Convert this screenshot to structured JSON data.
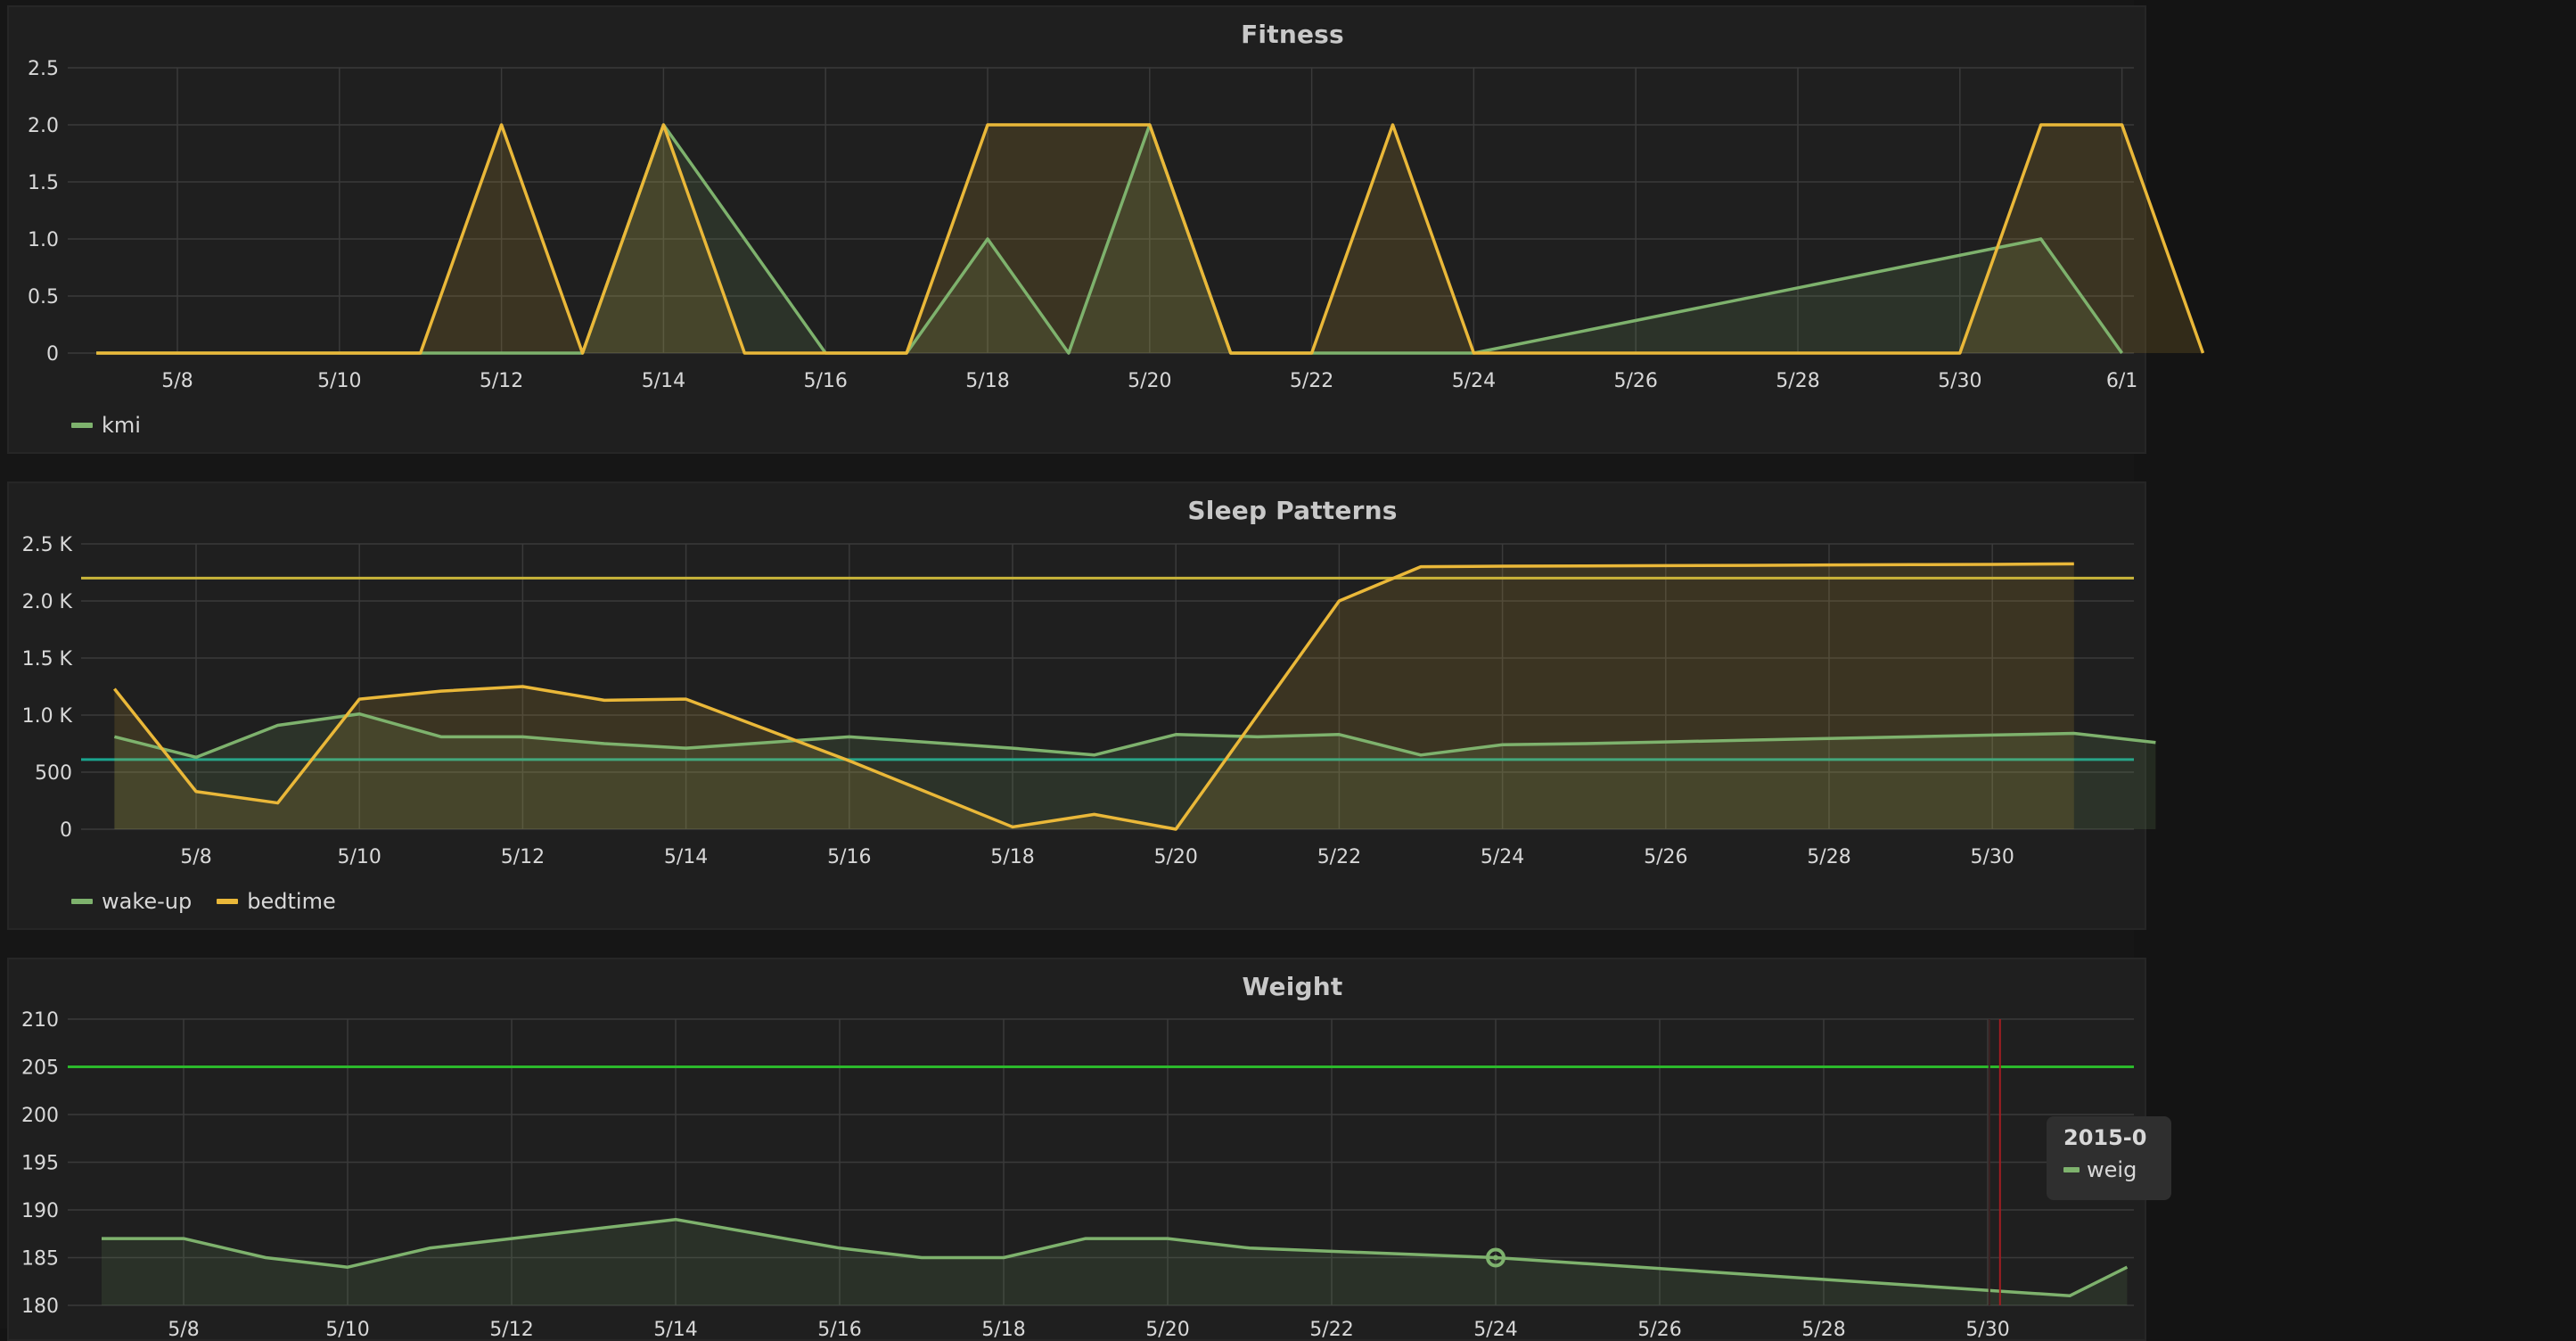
{
  "palette": {
    "green": "#7eb26d",
    "yellow": "#eab839",
    "threshold_yellow": "#c9b53a",
    "threshold_teal": "#1aa58f",
    "threshold_green": "#2bb92b",
    "marker_red": "#a31d22",
    "grid": "#3a3a3a",
    "tick_text": "#d8d8d8"
  },
  "panels": {
    "fitness": {
      "title": "Fitness",
      "legend": [
        {
          "name": "kmi",
          "color": "#7eb26d"
        }
      ]
    },
    "sleep": {
      "title": "Sleep Patterns",
      "legend": [
        {
          "name": "wake-up",
          "color": "#7eb26d"
        },
        {
          "name": "bedtime",
          "color": "#eab839"
        }
      ]
    },
    "weight": {
      "title": "Weight",
      "tooltip": {
        "title": "2015-0",
        "series_name": "weig"
      }
    }
  },
  "chart_data": [
    {
      "id": "fitness",
      "type": "area",
      "title": "Fitness",
      "x_unit": "day of May 2015",
      "xlim": [
        7,
        32.45
      ],
      "x_ticks": [
        8,
        10,
        12,
        14,
        16,
        18,
        20,
        22,
        24,
        26,
        28,
        30,
        32
      ],
      "x_tick_labels": [
        "5/8",
        "5/10",
        "5/12",
        "5/14",
        "5/16",
        "5/18",
        "5/20",
        "5/22",
        "5/24",
        "5/26",
        "5/28",
        "5/30",
        "6/1"
      ],
      "ylim": [
        0,
        2.5
      ],
      "y_ticks": [
        0,
        0.5,
        1.0,
        1.5,
        2.0,
        2.5
      ],
      "y_tick_labels": [
        "0",
        "0.5",
        "1.0",
        "1.5",
        "2.0",
        "2.5"
      ],
      "grid": true,
      "legend_position": "bottom-left",
      "series": [
        {
          "name": "kmi",
          "color": "#7eb26d",
          "x": [
            7,
            8,
            9,
            10,
            11,
            12,
            13,
            14,
            15,
            16,
            17,
            18,
            19,
            20,
            21,
            22,
            23,
            24,
            31,
            32
          ],
          "values": [
            0,
            0,
            0,
            0,
            0,
            0,
            0,
            2,
            1,
            0,
            0,
            1,
            0,
            2,
            0,
            0,
            0,
            0,
            1,
            0
          ]
        },
        {
          "color": "#eab839",
          "x": [
            7,
            8,
            9,
            10,
            11,
            12,
            13,
            14,
            15,
            16,
            17,
            18,
            19,
            20,
            21,
            22,
            23,
            24,
            25,
            26,
            27,
            28,
            29,
            30,
            31,
            32,
            33
          ],
          "values": [
            0,
            0,
            0,
            0,
            0,
            2,
            0,
            2,
            0,
            0,
            0,
            2,
            2,
            2,
            0,
            0,
            2,
            0,
            0,
            0,
            0,
            0,
            0,
            0,
            2,
            2,
            0
          ]
        }
      ]
    },
    {
      "id": "sleep",
      "type": "area",
      "title": "Sleep Patterns",
      "x_unit": "day of May 2015",
      "xlim": [
        6.5,
        32
      ],
      "x_ticks": [
        8,
        10,
        12,
        14,
        16,
        18,
        20,
        22,
        24,
        26,
        28,
        30
      ],
      "x_tick_labels": [
        "5/8",
        "5/10",
        "5/12",
        "5/14",
        "5/16",
        "5/18",
        "5/20",
        "5/22",
        "5/24",
        "5/26",
        "5/28",
        "5/30"
      ],
      "ylim": [
        0,
        2500
      ],
      "y_ticks": [
        0,
        500,
        1000,
        1500,
        2000,
        2500
      ],
      "y_tick_labels": [
        "0",
        "500",
        "1.0 K",
        "1.5 K",
        "2.0 K",
        "2.5 K"
      ],
      "grid": true,
      "legend_position": "bottom-left",
      "thresholds": [
        {
          "value": 2200,
          "color": "#c9b53a"
        },
        {
          "value": 610,
          "color": "#1aa58f"
        }
      ],
      "series": [
        {
          "name": "wake-up",
          "color": "#7eb26d",
          "x": [
            7,
            8,
            9,
            10,
            11,
            12,
            13,
            14,
            15,
            16,
            17,
            18,
            19,
            20,
            21,
            22,
            23,
            24,
            25,
            26,
            27,
            28,
            29,
            30,
            31,
            32
          ],
          "values": [
            810,
            630,
            910,
            1010,
            810,
            810,
            750,
            710,
            760,
            810,
            760,
            710,
            650,
            830,
            810,
            830,
            650,
            740,
            750,
            765,
            780,
            795,
            810,
            825,
            840,
            760
          ]
        },
        {
          "name": "bedtime",
          "color": "#eab839",
          "x": [
            7,
            8,
            9,
            10,
            11,
            12,
            13,
            14,
            16,
            18,
            19,
            20,
            22,
            23,
            24,
            25,
            26,
            27,
            28,
            29,
            30,
            31
          ],
          "values": [
            1230,
            330,
            230,
            1140,
            1210,
            1250,
            1130,
            1140,
            600,
            20,
            130,
            0,
            2000,
            2300,
            2305,
            2307,
            2310,
            2312,
            2315,
            2318,
            2320,
            2325
          ]
        }
      ]
    },
    {
      "id": "weight",
      "type": "area",
      "title": "Weight",
      "x_unit": "day of May 2015",
      "xlim": [
        7,
        31.7
      ],
      "ylim": [
        180,
        210
      ],
      "y_ticks": [
        180,
        185,
        190,
        195,
        200,
        205,
        210
      ],
      "y_tick_labels": [
        "180",
        "185",
        "190",
        "195",
        "200",
        "205",
        "210"
      ],
      "x_ticks": [
        8,
        10,
        12,
        14,
        16,
        18,
        20,
        22,
        24,
        26,
        28,
        30
      ],
      "x_tick_labels": [
        "5/8",
        "5/10",
        "5/12",
        "5/14",
        "5/16",
        "5/18",
        "5/20",
        "5/22",
        "5/24",
        "5/26",
        "5/28",
        "5/30"
      ],
      "grid": true,
      "thresholds": [
        {
          "value": 205,
          "color": "#2bb92b"
        }
      ],
      "marker_x": 30.15,
      "hover_x": 24,
      "series": [
        {
          "name": "weight",
          "color": "#7eb26d",
          "x": [
            7,
            8,
            9,
            10,
            11,
            12,
            13,
            14,
            15,
            16,
            17,
            18,
            19,
            20,
            21,
            24,
            31,
            31.7
          ],
          "values": [
            187,
            187,
            185,
            184,
            186,
            187,
            188,
            189,
            187.5,
            186,
            185,
            185,
            187,
            187,
            186,
            185,
            181,
            184
          ]
        }
      ]
    }
  ]
}
